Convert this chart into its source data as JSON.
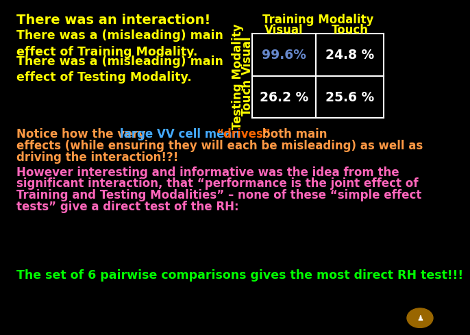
{
  "background_color": "#000000",
  "title_text": "There was an interaction!",
  "title_color": "#ffff00",
  "line2_text": "There was a (misleading) main\neffect of Training Modality.",
  "line2_color": "#ffff00",
  "line3_text": "There was a (misleading) main\neffect of Testing Modality.",
  "line3_color": "#ffff00",
  "table_header_training": "Training Modality",
  "table_col1": "Visual",
  "table_col2": "Touch",
  "table_row_label_outer": "Testing Modality",
  "table_row_label_row1": "Visual",
  "table_row_label_row2": "Touch",
  "cell_vv": "99.6%",
  "cell_vt": "24.8 %",
  "cell_tv": "26.2 %",
  "cell_tt": "25.6 %",
  "cell_vv_color": "#6688cc",
  "cell_other_color": "#ffffff",
  "table_line_color": "#ffffff",
  "table_header_color": "#ffff00",
  "notice_seg1": "Notice how the very ",
  "notice_seg1_color": "#ff9944",
  "notice_seg2": "large VV cell mean ",
  "notice_seg2_color": "#44aaff",
  "notice_seg3": "“drives”",
  "notice_seg3_color": "#ff6600",
  "notice_seg4": " both main",
  "notice_seg4_color": "#ff9944",
  "notice_line2": "effects (while ensuring they will each be misleading) as well as",
  "notice_line2_color": "#ff9944",
  "notice_line3": "driving the interaction!?!",
  "notice_line3_color": "#ff9944",
  "however_lines": [
    "However interesting and informative was the idea from the",
    "significant interaction, that “performance is the joint effect of",
    "Training and Testing Modalities” – none of these “simple effect",
    "tests” give a direct test of the RH:"
  ],
  "however_color": "#ff66bb",
  "final_text": "The set of 6 pairwise comparisons gives the most direct RH test!!!",
  "final_color": "#00ff00"
}
